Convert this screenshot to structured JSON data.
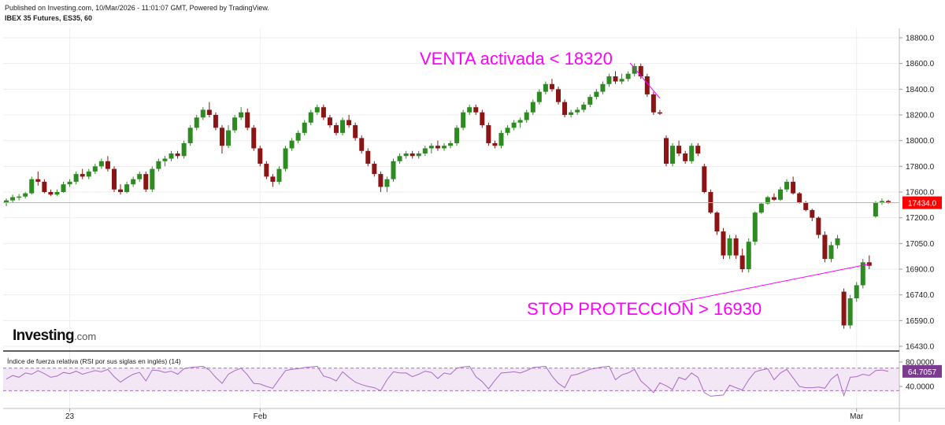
{
  "header": {
    "published": "Published on Investing.com, 10/Mar/2026 - 11:01:07 GMT, Powered by TradingView.",
    "symbol": "IBEX 35 Futures, ES35, 60"
  },
  "logo": {
    "brand": "Investing",
    "suffix": ".com"
  },
  "colors": {
    "up": "#2e8b22",
    "down": "#8b1414",
    "annotation": "#ff00ff",
    "price_line": "#f0a0a0",
    "price_badge": "#ff0000",
    "rsi_line": "#a86cc9",
    "rsi_band": "#f3e6f5",
    "rsi_badge": "#7b3b8f"
  },
  "chart_data": [
    {
      "type": "candlestick",
      "title": "IBEX 35 Futures, ES35, 60",
      "y_ticks": [
        16430,
        16590,
        16740,
        16900,
        17050,
        17200,
        17600,
        17800,
        18000,
        18200,
        18400,
        18600,
        18800
      ],
      "y_tick_labels": [
        "16430.0",
        "16590.0",
        "16740.0",
        "16900.0",
        "17050.0",
        "17200.0",
        "17600.0",
        "17800.0",
        "18000.0",
        "18200.0",
        "18400.0",
        "18600.0",
        "18800.0"
      ],
      "x_labels": [
        {
          "label": "23",
          "index": 10
        },
        {
          "label": "Feb",
          "index": 40
        },
        {
          "label": "Mar",
          "index": 134
        }
      ],
      "last_price": 17434,
      "last_price_label": "17434.0",
      "ohlc": [
        [
          17434,
          17500,
          17380,
          17470
        ],
        [
          17470,
          17560,
          17440,
          17520
        ],
        [
          17520,
          17570,
          17470,
          17530
        ],
        [
          17530,
          17600,
          17500,
          17580
        ],
        [
          17580,
          17720,
          17560,
          17700
        ],
        [
          17700,
          17760,
          17650,
          17680
        ],
        [
          17680,
          17700,
          17580,
          17600
        ],
        [
          17600,
          17620,
          17540,
          17560
        ],
        [
          17560,
          17620,
          17540,
          17600
        ],
        [
          17600,
          17680,
          17590,
          17660
        ],
        [
          17660,
          17700,
          17640,
          17680
        ],
        [
          17680,
          17760,
          17660,
          17740
        ],
        [
          17740,
          17780,
          17700,
          17720
        ],
        [
          17720,
          17780,
          17700,
          17760
        ],
        [
          17760,
          17820,
          17740,
          17800
        ],
        [
          17800,
          17860,
          17780,
          17840
        ],
        [
          17840,
          17880,
          17760,
          17780
        ],
        [
          17780,
          17800,
          17600,
          17620
        ],
        [
          17620,
          17660,
          17560,
          17600
        ],
        [
          17600,
          17680,
          17580,
          17660
        ],
        [
          17660,
          17720,
          17640,
          17700
        ],
        [
          17700,
          17760,
          17680,
          17740
        ],
        [
          17740,
          17760,
          17600,
          17620
        ],
        [
          17620,
          17800,
          17600,
          17780
        ],
        [
          17780,
          17860,
          17760,
          17840
        ],
        [
          17840,
          17880,
          17800,
          17860
        ],
        [
          17860,
          17920,
          17840,
          17900
        ],
        [
          17900,
          17920,
          17860,
          17880
        ],
        [
          17880,
          18000,
          17860,
          17980
        ],
        [
          17980,
          18120,
          17960,
          18100
        ],
        [
          18100,
          18200,
          18080,
          18180
        ],
        [
          18180,
          18260,
          18160,
          18240
        ],
        [
          18240,
          18300,
          18180,
          18200
        ],
        [
          18200,
          18220,
          18080,
          18100
        ],
        [
          18100,
          18120,
          17900,
          17960
        ],
        [
          17960,
          18120,
          17940,
          18080
        ],
        [
          18080,
          18200,
          18060,
          18180
        ],
        [
          18180,
          18260,
          18160,
          18220
        ],
        [
          18220,
          18250,
          18080,
          18100
        ],
        [
          18100,
          18120,
          17920,
          17940
        ],
        [
          17940,
          17960,
          17800,
          17820
        ],
        [
          17820,
          17840,
          17700,
          17720
        ],
        [
          17720,
          17740,
          17640,
          17680
        ],
        [
          17680,
          17800,
          17660,
          17780
        ],
        [
          17780,
          17960,
          17760,
          17940
        ],
        [
          17940,
          18020,
          17920,
          18000
        ],
        [
          18000,
          18080,
          17980,
          18060
        ],
        [
          18060,
          18160,
          18040,
          18140
        ],
        [
          18140,
          18240,
          18120,
          18220
        ],
        [
          18220,
          18280,
          18200,
          18260
        ],
        [
          18260,
          18280,
          18160,
          18180
        ],
        [
          18180,
          18200,
          18100,
          18120
        ],
        [
          18120,
          18140,
          18040,
          18060
        ],
        [
          18060,
          18180,
          18040,
          18160
        ],
        [
          18160,
          18200,
          18100,
          18120
        ],
        [
          18120,
          18140,
          18000,
          18020
        ],
        [
          18020,
          18040,
          17900,
          17920
        ],
        [
          17920,
          17940,
          17800,
          17820
        ],
        [
          17820,
          17840,
          17720,
          17740
        ],
        [
          17740,
          17760,
          17600,
          17640
        ],
        [
          17640,
          17720,
          17600,
          17700
        ],
        [
          17700,
          17860,
          17680,
          17840
        ],
        [
          17840,
          17900,
          17820,
          17880
        ],
        [
          17880,
          17920,
          17860,
          17900
        ],
        [
          17900,
          17920,
          17860,
          17880
        ],
        [
          17880,
          17920,
          17860,
          17900
        ],
        [
          17900,
          17960,
          17880,
          17940
        ],
        [
          17940,
          17980,
          17900,
          17960
        ],
        [
          17960,
          18000,
          17920,
          17940
        ],
        [
          17940,
          17980,
          17920,
          17960
        ],
        [
          17960,
          18000,
          17940,
          17980
        ],
        [
          17980,
          18120,
          17960,
          18100
        ],
        [
          18100,
          18240,
          18080,
          18220
        ],
        [
          18220,
          18280,
          18200,
          18260
        ],
        [
          18260,
          18280,
          18200,
          18220
        ],
        [
          18220,
          18240,
          18100,
          18120
        ],
        [
          18120,
          18140,
          17960,
          17980
        ],
        [
          17980,
          18000,
          17940,
          17960
        ],
        [
          17960,
          18080,
          17940,
          18060
        ],
        [
          18060,
          18120,
          18040,
          18100
        ],
        [
          18100,
          18160,
          18080,
          18140
        ],
        [
          18140,
          18180,
          18100,
          18160
        ],
        [
          18160,
          18240,
          18140,
          18220
        ],
        [
          18220,
          18320,
          18200,
          18300
        ],
        [
          18300,
          18400,
          18280,
          18380
        ],
        [
          18380,
          18460,
          18360,
          18440
        ],
        [
          18440,
          18480,
          18380,
          18400
        ],
        [
          18400,
          18420,
          18280,
          18300
        ],
        [
          18300,
          18320,
          18180,
          18200
        ],
        [
          18200,
          18240,
          18180,
          18220
        ],
        [
          18220,
          18260,
          18200,
          18240
        ],
        [
          18240,
          18300,
          18220,
          18280
        ],
        [
          18280,
          18360,
          18260,
          18340
        ],
        [
          18340,
          18400,
          18320,
          18380
        ],
        [
          18380,
          18460,
          18360,
          18440
        ],
        [
          18440,
          18520,
          18420,
          18500
        ],
        [
          18500,
          18540,
          18440,
          18460
        ],
        [
          18460,
          18520,
          18440,
          18480
        ],
        [
          18480,
          18540,
          18460,
          18520
        ],
        [
          18520,
          18600,
          18500,
          18580
        ],
        [
          18580,
          18600,
          18480,
          18500
        ],
        [
          18500,
          18520,
          18340,
          18360
        ],
        [
          18360,
          18380,
          18200,
          18220
        ],
        [
          18220,
          18240,
          18200,
          18210
        ],
        [
          18020,
          18040,
          17800,
          17820
        ],
        [
          17820,
          17980,
          17800,
          17960
        ],
        [
          17960,
          18000,
          17880,
          17900
        ],
        [
          17900,
          17920,
          17820,
          17840
        ],
        [
          17840,
          17980,
          17820,
          17960
        ],
        [
          17960,
          17980,
          17880,
          17900
        ],
        [
          17800,
          17820,
          17580,
          17600
        ],
        [
          17600,
          17620,
          17260,
          17280
        ],
        [
          17280,
          17300,
          17100,
          17120
        ],
        [
          17120,
          17140,
          16960,
          16980
        ],
        [
          16980,
          17100,
          16960,
          17080
        ],
        [
          17080,
          17100,
          16960,
          16980
        ],
        [
          16980,
          17020,
          16880,
          16900
        ],
        [
          16900,
          17080,
          16880,
          17060
        ],
        [
          17060,
          17300,
          17040,
          17280
        ],
        [
          17280,
          17440,
          17260,
          17420
        ],
        [
          17420,
          17540,
          17400,
          17520
        ],
        [
          17520,
          17580,
          17460,
          17480
        ],
        [
          17480,
          17640,
          17460,
          17620
        ],
        [
          17620,
          17700,
          17600,
          17680
        ],
        [
          17680,
          17720,
          17560,
          17580
        ],
        [
          17580,
          17600,
          17420,
          17440
        ],
        [
          17440,
          17460,
          17300,
          17320
        ],
        [
          17320,
          17340,
          17180,
          17200
        ],
        [
          17200,
          17220,
          17080,
          17100
        ],
        [
          17100,
          17120,
          16940,
          16960
        ],
        [
          16960,
          17060,
          16940,
          17040
        ],
        [
          17040,
          17100,
          17020,
          17080
        ],
        [
          16760,
          16780,
          16540,
          16560
        ],
        [
          16560,
          16740,
          16540,
          16720
        ],
        [
          16720,
          16820,
          16700,
          16800
        ],
        [
          16800,
          16960,
          16780,
          16940
        ],
        [
          16940,
          16980,
          16900,
          16920
        ],
        [
          17220,
          17460,
          17200,
          17440
        ],
        [
          17440,
          17500,
          17400,
          17460
        ],
        [
          17460,
          17480,
          17420,
          17434
        ]
      ],
      "annotations": [
        {
          "text": "VENTA activada < 18320"
        },
        {
          "text": "STOP PROTECCION > 16930"
        }
      ]
    },
    {
      "type": "line",
      "title": "Índice de fuerza relativa (RSI por sus siglas en inglés) (14)",
      "y_ticks": [
        40,
        80
      ],
      "y_tick_labels": [
        "40.0000",
        "80.0000"
      ],
      "band": [
        33,
        70
      ],
      "last_value": 64.7057,
      "last_value_label": "64.7057",
      "values": [
        52,
        58,
        55,
        62,
        60,
        66,
        61,
        55,
        57,
        63,
        61,
        65,
        60,
        63,
        66,
        64,
        68,
        56,
        47,
        54,
        60,
        63,
        49,
        67,
        66,
        63,
        65,
        60,
        69,
        71,
        72,
        73,
        67,
        55,
        45,
        60,
        66,
        70,
        59,
        45,
        44,
        40,
        37,
        52,
        66,
        68,
        69,
        71,
        72,
        73,
        57,
        54,
        49,
        64,
        55,
        47,
        43,
        40,
        38,
        33,
        51,
        64,
        62,
        62,
        56,
        60,
        65,
        63,
        53,
        62,
        60,
        70,
        72,
        73,
        56,
        48,
        36,
        50,
        62,
        63,
        64,
        62,
        66,
        71,
        72,
        73,
        57,
        45,
        38,
        58,
        60,
        64,
        68,
        70,
        72,
        73,
        51,
        59,
        62,
        68,
        49,
        40,
        30,
        46,
        41,
        35,
        55,
        51,
        62,
        55,
        30,
        24,
        25,
        26,
        42,
        38,
        34,
        51,
        64,
        67,
        69,
        51,
        62,
        68,
        54,
        40,
        38,
        38,
        39,
        37,
        52,
        60,
        25,
        55,
        56,
        60,
        58,
        66,
        67,
        64.7057
      ]
    }
  ]
}
